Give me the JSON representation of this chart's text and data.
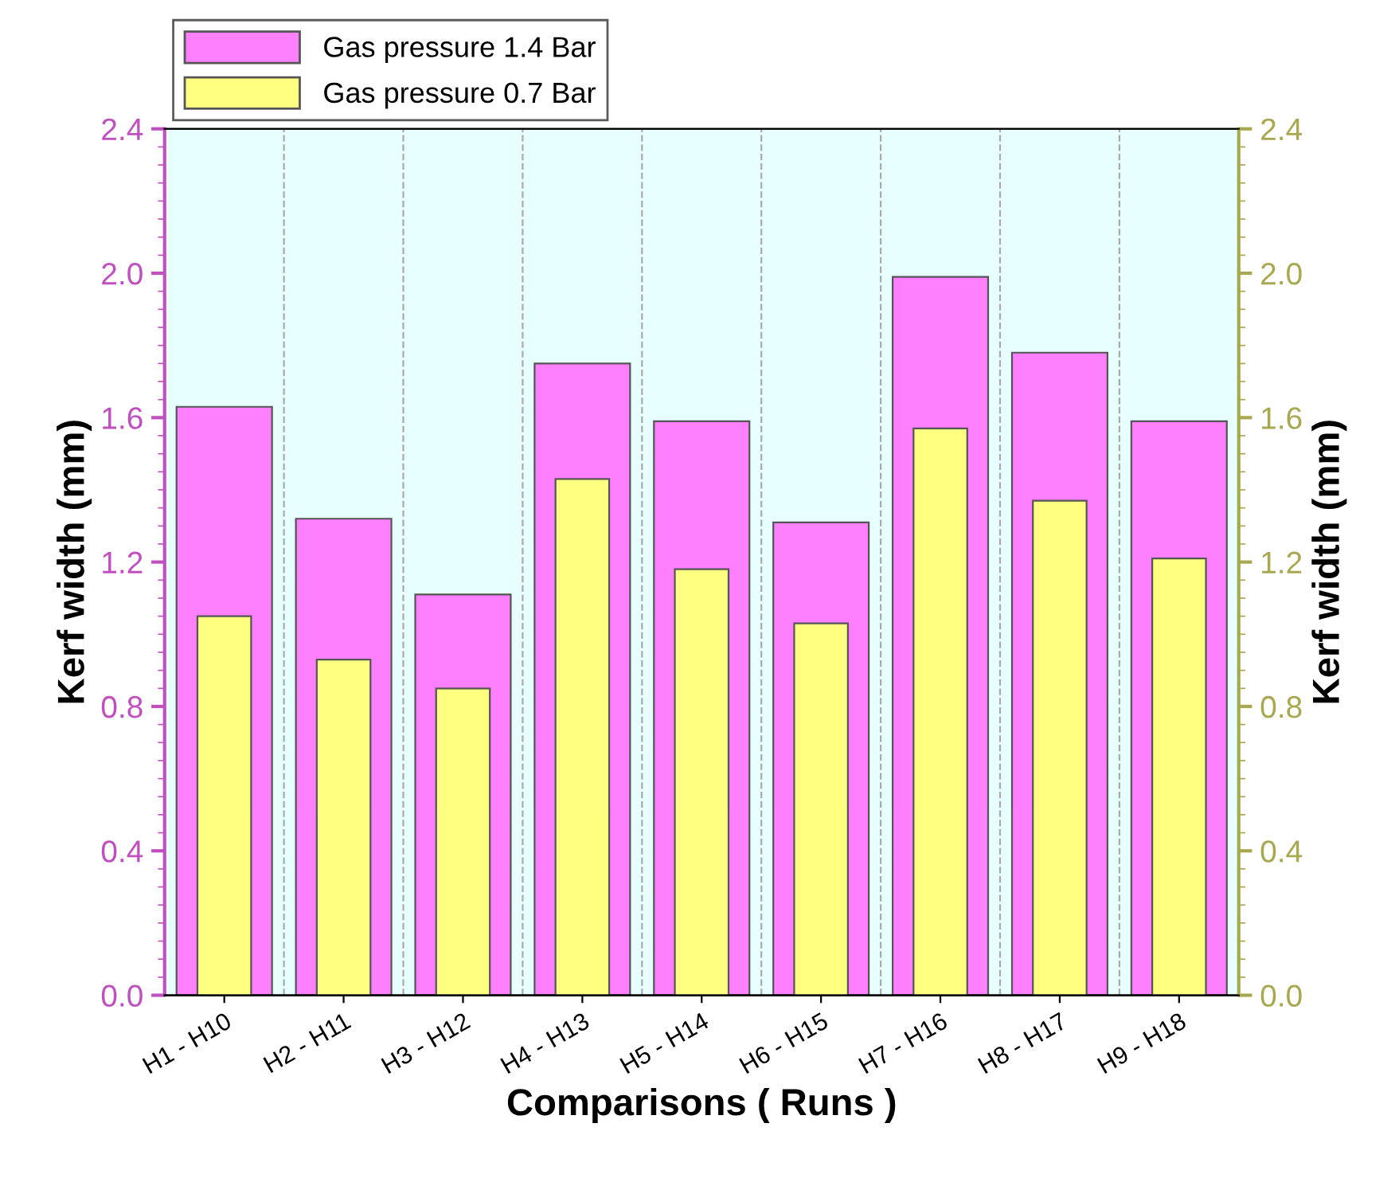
{
  "chart_data": {
    "type": "bar",
    "xlabel": "Comparisons ( Runs )",
    "ylabel": "Kerf width (mm)",
    "y2label": "Kerf width (mm)",
    "categories": [
      "H1 - H10",
      "H2 - H11",
      "H3 - H12",
      "H4 - H13",
      "H5 - H14",
      "H6 - H15",
      "H7 - H16",
      "H8 - H17",
      "H9 - H18"
    ],
    "series": [
      {
        "name": "Gas pressure 1.4 Bar",
        "color": "#ff80ff",
        "values": [
          1.63,
          1.32,
          1.11,
          1.75,
          1.59,
          1.31,
          1.99,
          1.78,
          1.59
        ]
      },
      {
        "name": "Gas pressure 0.7 Bar",
        "color": "#ffff80",
        "values": [
          1.05,
          0.93,
          0.85,
          1.43,
          1.18,
          1.03,
          1.57,
          1.37,
          1.21
        ]
      }
    ],
    "ylim": [
      0,
      2.4
    ],
    "yticks": [
      {
        "value": 0,
        "label": "0.0"
      },
      0.4,
      0.8,
      1.2,
      1.6,
      {
        "value": 2,
        "label": "2.0"
      },
      2.4
    ],
    "y2lim": [
      0,
      2.4
    ],
    "y2ticks": [
      {
        "value": 0,
        "label": "0.0"
      },
      0.4,
      0.8,
      1.2,
      1.6,
      {
        "value": 2,
        "label": "2.0"
      },
      2.4
    ],
    "grid": "x",
    "legend": "top left"
  }
}
